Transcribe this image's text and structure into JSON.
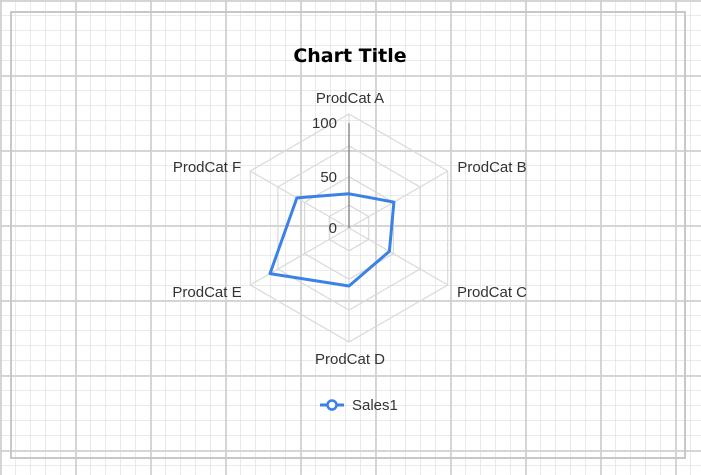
{
  "chart_data": {
    "type": "radar",
    "title": "Chart Title",
    "categories": [
      "ProdCat A",
      "ProdCat B",
      "ProdCat C",
      "ProdCat D",
      "ProdCat E",
      "ProdCat F"
    ],
    "series": [
      {
        "name": "Sales1",
        "values": [
          33,
          50,
          45,
          56,
          88,
          58
        ]
      }
    ],
    "ticks": [
      0,
      50,
      100
    ],
    "rmax": 110,
    "grid": true,
    "legend": "bottom",
    "colors": {
      "series": "#3b82e6",
      "grid": "#d9d9d9",
      "axis": "#888888"
    }
  }
}
